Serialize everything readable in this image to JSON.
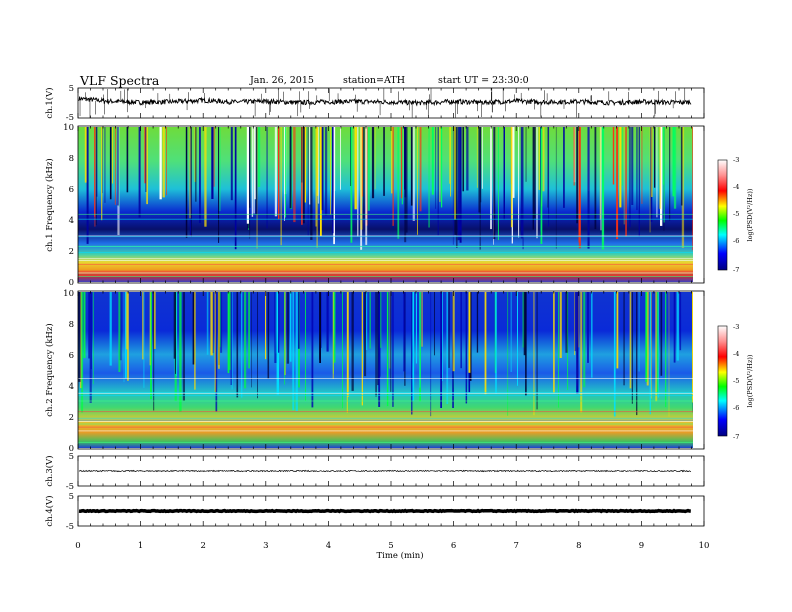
{
  "header": {
    "title": "VLF  Spectra",
    "date": "Jan. 26, 2015",
    "station": "station=ATH",
    "start": "start  UT  =   23:30:0"
  },
  "chart_data": [
    {
      "type": "line",
      "panel": "ch1-waveform",
      "ylabel": "ch.1(V)",
      "ylim": [
        -5,
        5
      ],
      "yticks": [
        "5",
        "-5"
      ],
      "x": [
        0,
        0.5,
        1,
        1.5,
        2,
        2.5,
        3,
        3.5,
        4,
        4.5,
        5,
        5.5,
        6,
        6.5,
        7,
        7.5,
        8,
        8.5,
        9,
        9.5,
        9.8
      ],
      "values": [
        1.5,
        0.6,
        0.2,
        0.4,
        0.9,
        0.3,
        0.6,
        0.1,
        0.4,
        0.5,
        0.3,
        0.0,
        0.5,
        0.2,
        0.6,
        0.3,
        0.5,
        0.1,
        0.4,
        0.2,
        0.3
      ]
    },
    {
      "type": "heatmap",
      "panel": "ch1-spectrogram",
      "ylabel": "ch.1 Frequency  (kHz)",
      "ylim": [
        0,
        10
      ],
      "yticks": [
        "0",
        "2",
        "4",
        "6",
        "8",
        "10"
      ],
      "colorbar": {
        "label": "log(PSD(V²/Hz))",
        "range": [
          -7,
          -3
        ],
        "ticks": [
          "-3",
          "-4",
          "-5",
          "-6",
          "-7"
        ]
      }
    },
    {
      "type": "heatmap",
      "panel": "ch2-spectrogram",
      "ylabel": "ch.2 Frequency  (kHz)",
      "ylim": [
        0,
        10
      ],
      "yticks": [
        "0",
        "2",
        "4",
        "6",
        "8",
        "10"
      ],
      "colorbar": {
        "label": "log(PSD(V²/Hz))",
        "range": [
          -7,
          -3
        ],
        "ticks": [
          "-3",
          "-4",
          "-5",
          "-6",
          "-7"
        ]
      }
    },
    {
      "type": "line",
      "panel": "ch3-waveform",
      "ylabel": "ch.3(V)",
      "ylim": [
        -5,
        5
      ],
      "yticks": [
        "5",
        "-5"
      ],
      "x": [
        0,
        9.8
      ],
      "values": [
        0,
        0
      ]
    },
    {
      "type": "line",
      "panel": "ch4-waveform",
      "ylabel": "ch.4(V)",
      "ylim": [
        -5,
        5
      ],
      "yticks": [
        "5",
        "-5"
      ],
      "x": [
        0,
        9.8
      ],
      "values": [
        0,
        0
      ]
    }
  ],
  "xaxis": {
    "label": "Time  (min)",
    "xlim": [
      0,
      10
    ],
    "ticks": [
      "0",
      "1",
      "2",
      "3",
      "4",
      "5",
      "6",
      "7",
      "8",
      "9",
      "10"
    ]
  }
}
